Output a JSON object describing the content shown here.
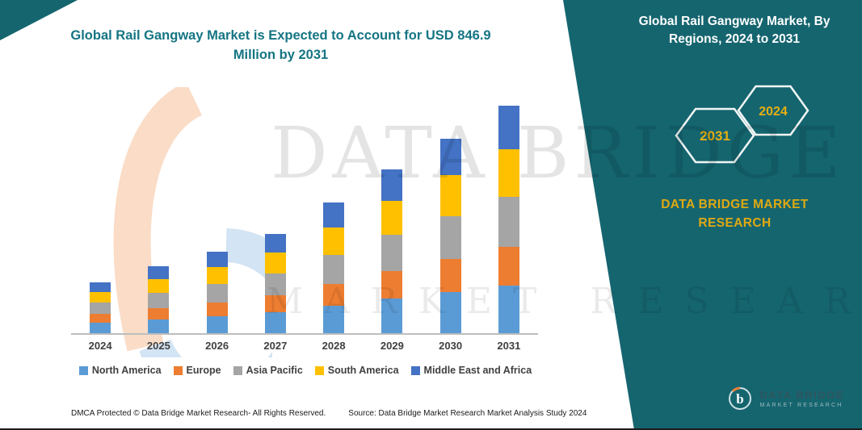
{
  "header": {
    "title": "Global Rail Gangway Market is Expected to Account for USD 846.9 Million by 2031"
  },
  "side_panel": {
    "title": "Global Rail Gangway Market, By Regions, 2024 to 2031",
    "hexagon_left": "2031",
    "hexagon_right": "2024",
    "brand_line1": "DATA BRIDGE MARKET",
    "brand_line2": "RESEARCH",
    "logo_name": "DATA BRIDGE",
    "logo_sub": "MARKET RESEARCH"
  },
  "watermark": {
    "line1": "DATA BRIDGE",
    "line2": "MARKET RESEARCH"
  },
  "footer": {
    "left": "DMCA Protected © Data Bridge Market Research-  All Rights Reserved.",
    "source": "Source: Data Bridge Market Research  Market Analysis Study 2024"
  },
  "colors": {
    "teal": "#15656F",
    "gold": "#DFA912"
  },
  "chart_data": {
    "type": "bar",
    "stacked": true,
    "title": "Global Rail Gangway Market, By Regions, 2024 to 2031",
    "annotation": "USD 846.9 Million by 2031",
    "unit": "USD Million",
    "categories": [
      "2024",
      "2025",
      "2026",
      "2027",
      "2028",
      "2029",
      "2030",
      "2031"
    ],
    "series": [
      {
        "name": "North America",
        "color": "#5B9BD5",
        "values": [
          40.1,
          52.3,
          63.8,
          77.7,
          102.1,
          128.1,
          152.5,
          177.8
        ]
      },
      {
        "name": "Europe",
        "color": "#ED7D31",
        "values": [
          32.5,
          42.3,
          51.7,
          62.9,
          82.6,
          103.7,
          123.4,
          144.0
        ]
      },
      {
        "name": "Asia Pacific",
        "color": "#A5A5A5",
        "values": [
          42.0,
          54.8,
          66.9,
          81.4,
          106.9,
          134.2,
          159.7,
          186.3
        ]
      },
      {
        "name": "South America",
        "color": "#FFC000",
        "values": [
          40.1,
          52.3,
          63.8,
          77.7,
          102.1,
          128.1,
          152.5,
          177.8
        ]
      },
      {
        "name": "Middle East and Africa",
        "color": "#4472C4",
        "values": [
          36.3,
          47.3,
          57.8,
          70.3,
          92.3,
          115.9,
          137.9,
          160.9
        ]
      }
    ],
    "totals": [
      191.0,
      249.0,
      304.0,
      370.0,
      486.0,
      610.0,
      726.0,
      846.9
    ],
    "xlabel": "",
    "ylabel": "",
    "ylim": [
      0,
      950
    ],
    "grid": false,
    "legend_position": "bottom"
  }
}
